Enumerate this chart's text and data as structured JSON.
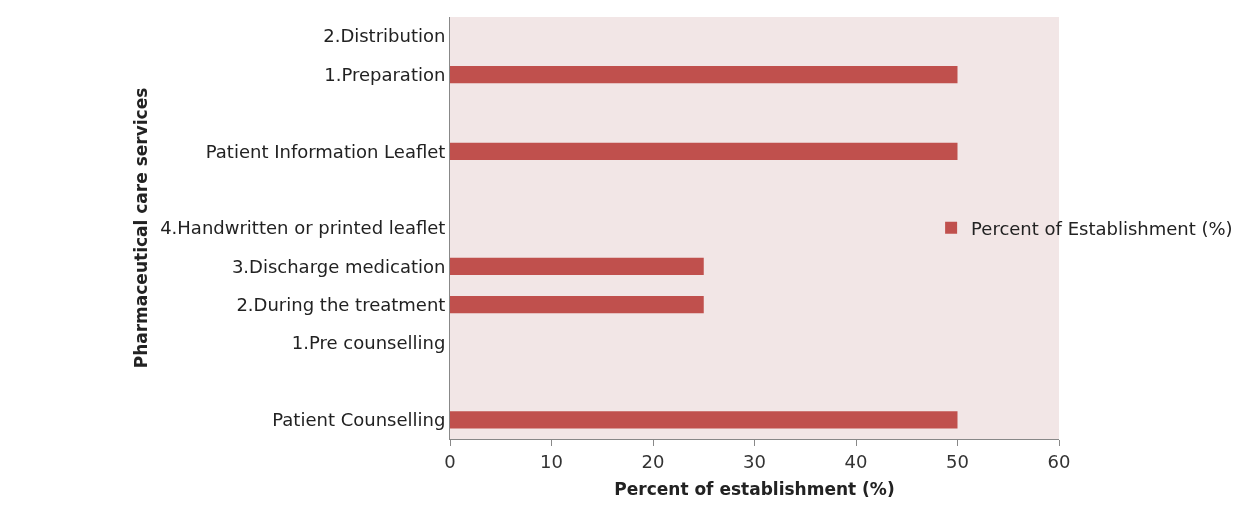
{
  "chart_data": {
    "type": "bar",
    "orientation": "horizontal",
    "xlabel": "Percent of establishment (%)",
    "ylabel": "Pharmaceutical care services",
    "categories": [
      "2.Distribution",
      "1.Preparation",
      null,
      "Patient Information Leaflet",
      null,
      "4.Handwritten or printed leaflet",
      "3.Discharge medication",
      "2.During the treatment",
      "1.Pre counselling",
      null,
      "Patient Counselling"
    ],
    "series": [
      {
        "name": "Percent of Establishment (%)",
        "color": "#c0504d",
        "values": [
          0,
          50,
          null,
          50,
          null,
          0,
          25,
          25,
          0,
          null,
          50
        ]
      }
    ],
    "xlim": [
      0,
      60
    ],
    "xticks": [
      0,
      10,
      20,
      30,
      40,
      50,
      60
    ],
    "grid": false,
    "legend": "right"
  }
}
